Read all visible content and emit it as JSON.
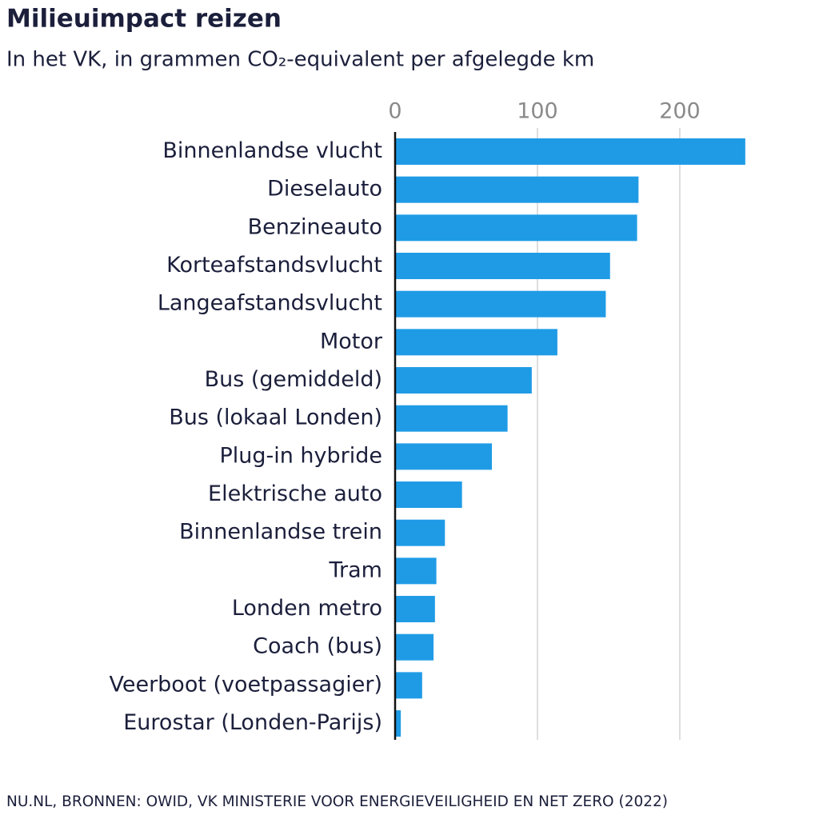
{
  "chart_data": {
    "type": "bar",
    "orientation": "horizontal",
    "title": "Milieuimpact reizen",
    "subtitle": "In het VK, in grammen CO₂-equivalent per afgelegde km",
    "source": "NU.NL, BRONNEN: OWID, VK MINISTERIE VOOR ENERGIEVEILIGHEID EN NET ZERO (2022)",
    "categories": [
      "Binnenlandse vlucht",
      "Dieselauto",
      "Benzineauto",
      "Korteafstandsvlucht",
      "Langeafstandsvlucht",
      "Motor",
      "Bus (gemiddeld)",
      "Bus (lokaal Londen)",
      "Plug-in hybride",
      "Elektrische auto",
      "Binnenlandse trein",
      "Tram",
      "Londen metro",
      "Coach (bus)",
      "Veerboot (voetpassagier)",
      "Eurostar (Londen-Parijs)"
    ],
    "values": [
      246,
      171,
      170,
      151,
      148,
      114,
      96,
      79,
      68,
      47,
      35,
      29,
      28,
      27,
      19,
      4
    ],
    "color": "#1f9be6",
    "xlim": [
      0,
      248
    ],
    "xticks": [
      0,
      100,
      200
    ],
    "grid": true
  }
}
